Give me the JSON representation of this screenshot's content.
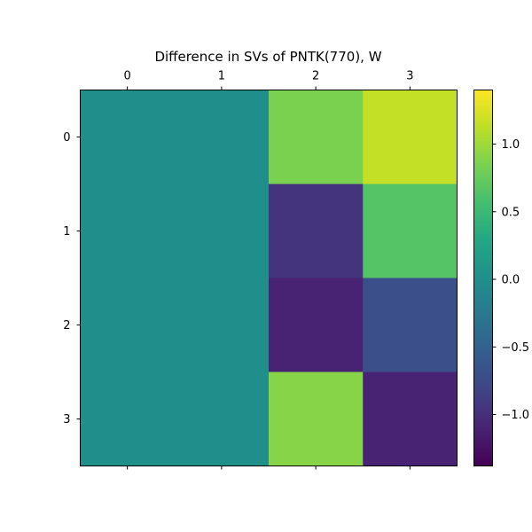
{
  "chart_data": {
    "type": "heatmap",
    "title": "Difference in SVs of PNTK(770), W",
    "x_ticks": [
      "0",
      "1",
      "2",
      "3"
    ],
    "y_ticks": [
      "0",
      "1",
      "2",
      "3"
    ],
    "values": [
      [
        0.0,
        0.0,
        0.85,
        1.15
      ],
      [
        0.0,
        0.0,
        -0.95,
        0.65
      ],
      [
        0.0,
        0.0,
        -1.1,
        -0.7
      ],
      [
        0.0,
        0.0,
        0.9,
        -1.1
      ]
    ],
    "colormap": "viridis",
    "vmin": -1.38,
    "vmax": 1.4,
    "colorbar_ticks": [
      "1.0",
      "0.5",
      "0.0",
      "−0.5",
      "−1.0"
    ],
    "colorbar_tick_values": [
      1.0,
      0.5,
      0.0,
      -0.5,
      -1.0
    ]
  }
}
